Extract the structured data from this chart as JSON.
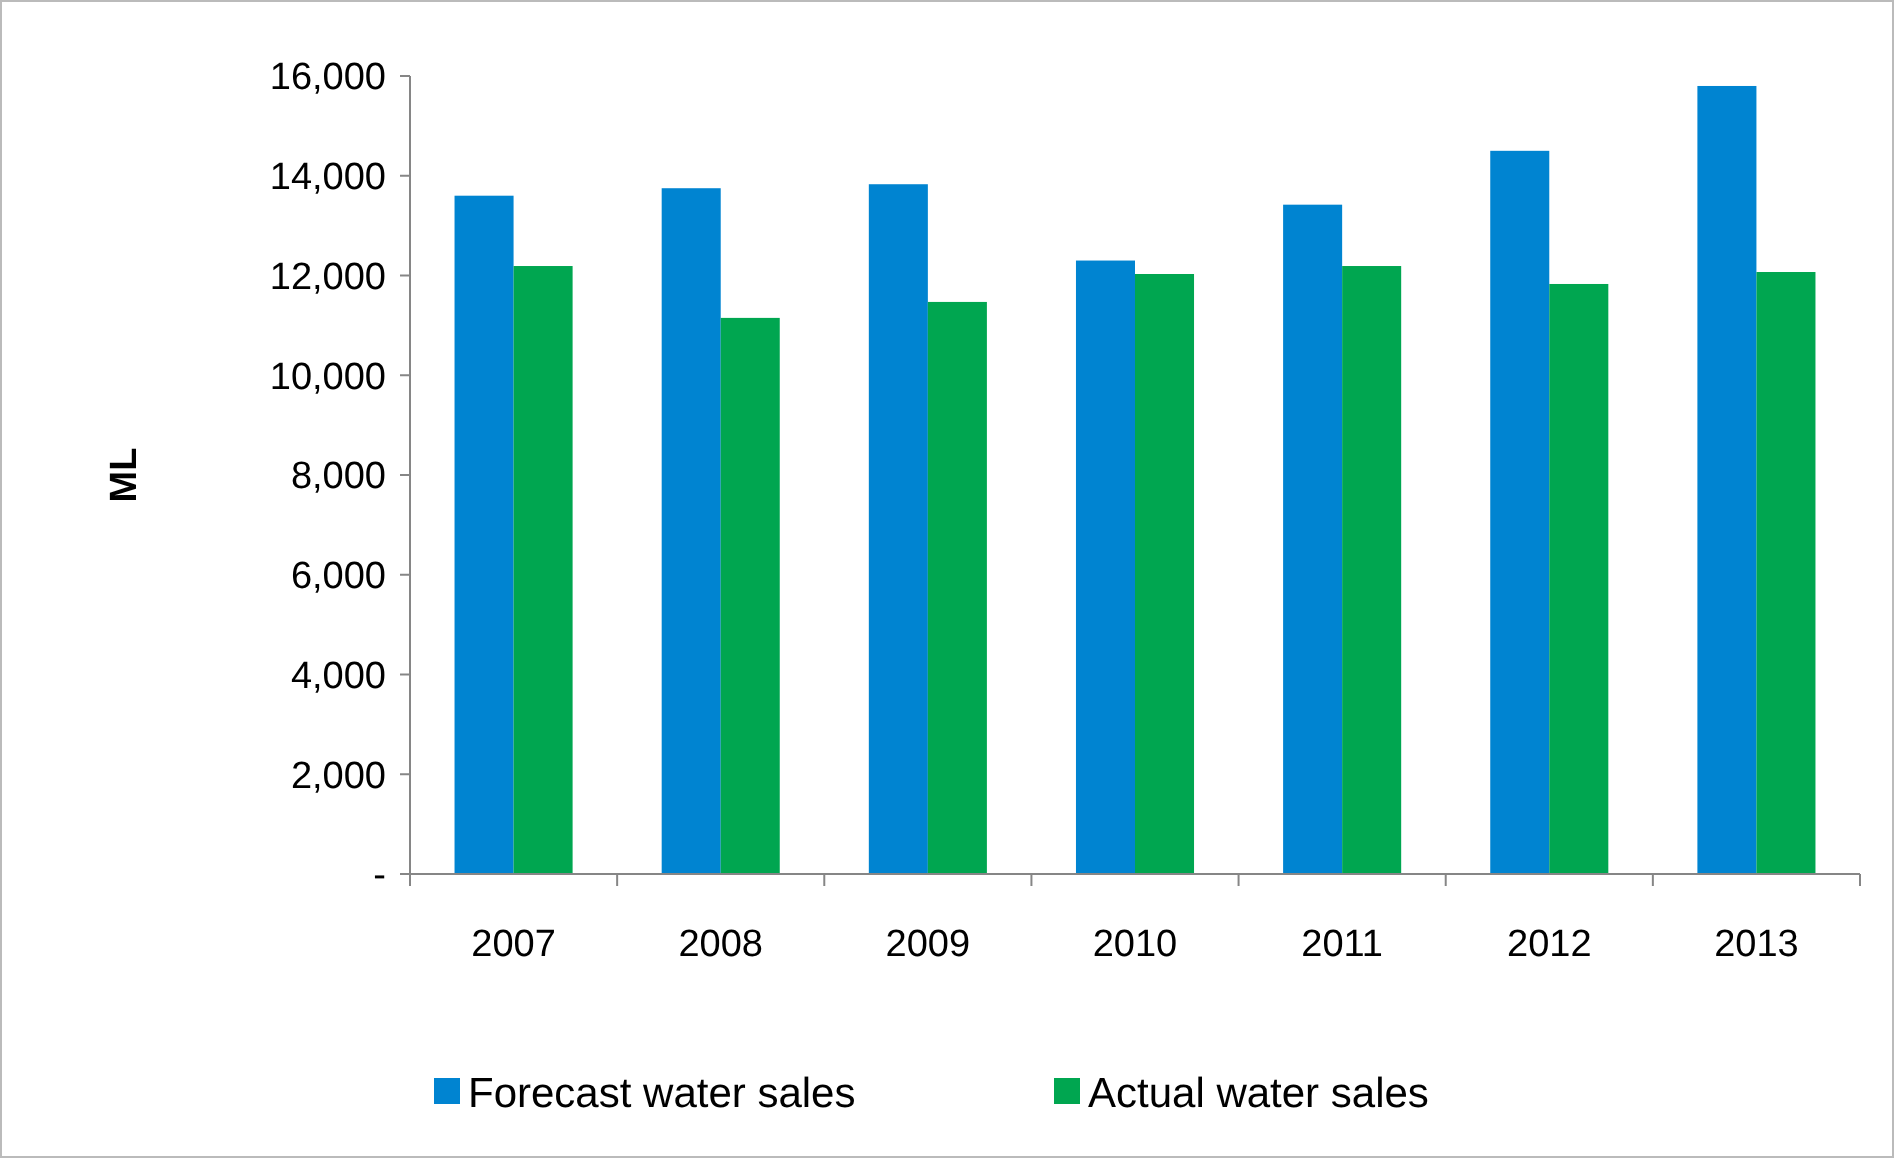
{
  "chart_data": {
    "type": "bar",
    "ylabel": "ML",
    "categories": [
      "2007",
      "2008",
      "2009",
      "2010",
      "2011",
      "2012",
      "2013"
    ],
    "series": [
      {
        "name": "Forecast water sales",
        "color": "#0084d1",
        "values": [
          13600,
          13750,
          13830,
          12300,
          13420,
          14500,
          15800
        ]
      },
      {
        "name": "Actual water sales",
        "color": "#00a650",
        "values": [
          12190,
          11150,
          11470,
          12030,
          12190,
          11830,
          12070
        ]
      }
    ],
    "ylim": [
      0,
      16000
    ],
    "yticks": [
      {
        "value": 0,
        "label": "-"
      },
      {
        "value": 2000,
        "label": "2,000"
      },
      {
        "value": 4000,
        "label": "4,000"
      },
      {
        "value": 6000,
        "label": "6,000"
      },
      {
        "value": 8000,
        "label": "8,000"
      },
      {
        "value": 10000,
        "label": "10,000"
      },
      {
        "value": 12000,
        "label": "12,000"
      },
      {
        "value": 14000,
        "label": "14,000"
      },
      {
        "value": 16000,
        "label": "16,000"
      }
    ],
    "grid": false,
    "legend": "bottom"
  }
}
